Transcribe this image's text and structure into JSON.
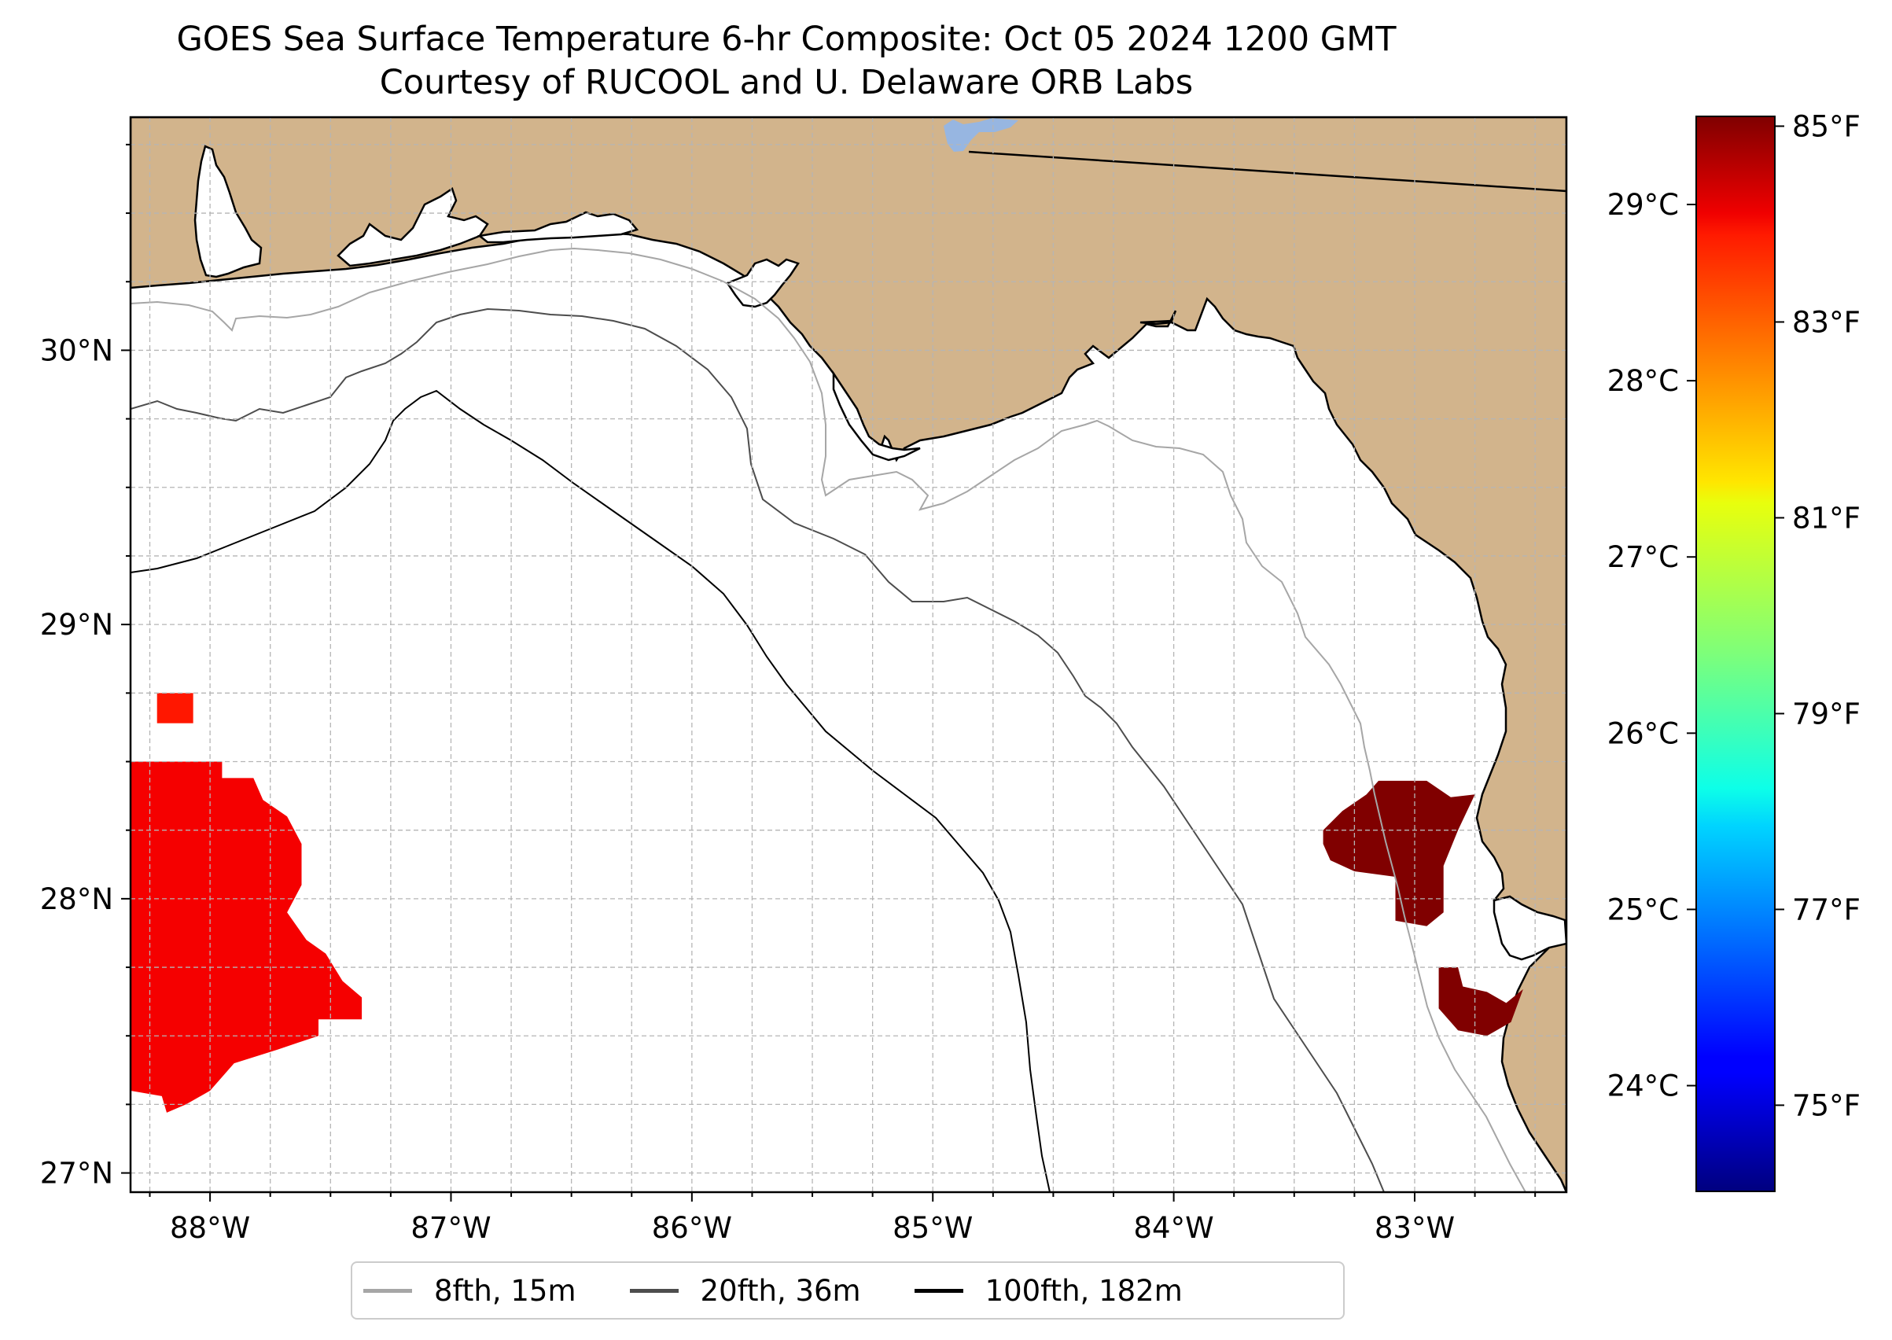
{
  "title": "GOES Sea Surface Temperature 6-hr Composite: Oct 05 2024 1200 GMT",
  "subtitle": "Courtesy of RUCOOL and U. Delaware ORB Labs",
  "map": {
    "lon_range": [
      -88.33,
      -82.37
    ],
    "lat_range": [
      26.93,
      30.85
    ],
    "land_color": "#d2b48c",
    "ocean_color": "#ffffff",
    "lake_color": "#97b6e1",
    "lon_ticks": [
      {
        "value": -88,
        "label": "88°W"
      },
      {
        "value": -87,
        "label": "87°W"
      },
      {
        "value": -86,
        "label": "86°W"
      },
      {
        "value": -85,
        "label": "85°W"
      },
      {
        "value": -84,
        "label": "84°W"
      },
      {
        "value": -83,
        "label": "83°W"
      }
    ],
    "lat_ticks": [
      {
        "value": 27,
        "label": "27°N"
      },
      {
        "value": 28,
        "label": "28°N"
      },
      {
        "value": 29,
        "label": "29°N"
      },
      {
        "value": 30,
        "label": "30°N"
      }
    ],
    "grid": true,
    "sst_patches": [
      {
        "region": "western-gulf",
        "lon_range": [
          -88.33,
          -87.37
        ],
        "lat_range": [
          27.1,
          28.75
        ],
        "temp_c": 28.8
      },
      {
        "region": "big-bend-coast",
        "lon_range": [
          -83.38,
          -82.75
        ],
        "lat_range": [
          27.9,
          28.43
        ],
        "temp_c": 29.7
      },
      {
        "region": "tampa-bay",
        "lon_range": [
          -82.9,
          -82.55
        ],
        "lat_range": [
          27.5,
          27.75
        ],
        "temp_c": 29.9
      }
    ]
  },
  "colorbar": {
    "colormap": "jet",
    "range_c": [
      23.4,
      29.5
    ],
    "celsius_ticks": [
      {
        "value": 24,
        "label": "24°C"
      },
      {
        "value": 25,
        "label": "25°C"
      },
      {
        "value": 26,
        "label": "26°C"
      },
      {
        "value": 27,
        "label": "27°C"
      },
      {
        "value": 28,
        "label": "28°C"
      },
      {
        "value": 29,
        "label": "29°C"
      }
    ],
    "fahrenheit_ticks": [
      {
        "value": 75,
        "label": "75°F"
      },
      {
        "value": 77,
        "label": "77°F"
      },
      {
        "value": 79,
        "label": "79°F"
      },
      {
        "value": 81,
        "label": "81°F"
      },
      {
        "value": 83,
        "label": "83°F"
      },
      {
        "value": 85,
        "label": "85°F"
      }
    ]
  },
  "legend": {
    "items": [
      {
        "label": "8fth, 15m",
        "color": "#a6a6a6"
      },
      {
        "label": "20fth, 36m",
        "color": "#4d4d4d"
      },
      {
        "label": "100fth, 182m",
        "color": "#000000"
      }
    ]
  }
}
